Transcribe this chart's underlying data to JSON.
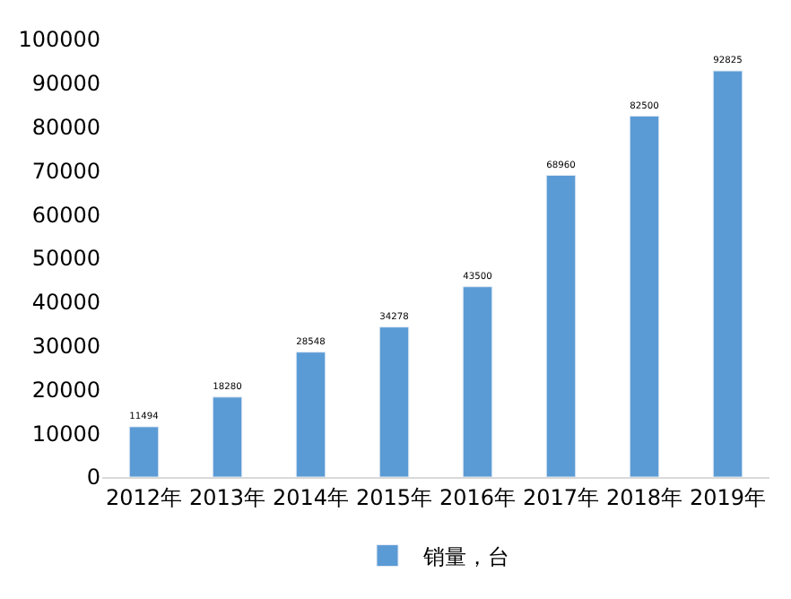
{
  "chart_data": {
    "type": "bar",
    "categories": [
      "2012年",
      "2013年",
      "2014年",
      "2015年",
      "2016年",
      "2017年",
      "2018年",
      "2019年"
    ],
    "series": [
      {
        "name": "销量，台",
        "color": "#5b9bd5",
        "values": [
          11494,
          18280,
          28548,
          34278,
          43500,
          68960,
          82500,
          92825
        ]
      }
    ],
    "ylim": [
      0,
      100000
    ],
    "yticks": [
      0,
      10000,
      20000,
      30000,
      40000,
      50000,
      60000,
      70000,
      80000,
      90000,
      100000
    ],
    "grid": false,
    "legend": "bottom",
    "data_labels": true
  }
}
